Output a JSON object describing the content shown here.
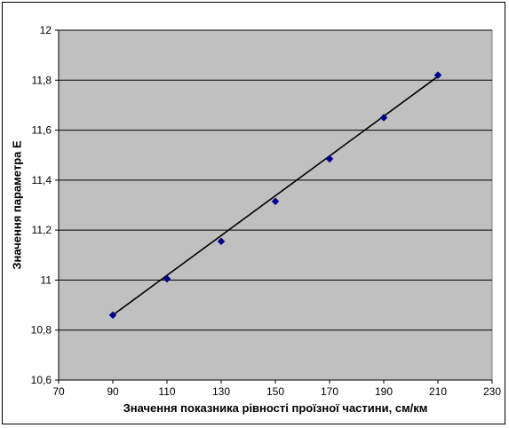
{
  "chart_data": {
    "type": "scatter",
    "title": "",
    "xlabel": "Значення показника рівності проїзної частини, см/км",
    "ylabel": "Значення параметра Е",
    "xlim": [
      70,
      230
    ],
    "ylim": [
      10.6,
      12
    ],
    "x_ticks": [
      "70",
      "90",
      "110",
      "130",
      "150",
      "170",
      "190",
      "210",
      "230"
    ],
    "y_ticks": [
      "10,6",
      "10,8",
      "11",
      "11,2",
      "11,4",
      "11,6",
      "11,8",
      "12"
    ],
    "grid": "horizontal",
    "legend": "none",
    "series": [
      {
        "x": [
          90,
          110,
          130,
          150,
          170,
          190,
          210
        ],
        "y": [
          10.86,
          11.005,
          11.155,
          11.315,
          11.485,
          11.65,
          11.82
        ],
        "marker": "diamond",
        "color": "#00008B"
      }
    ],
    "trendline": {
      "type": "linear",
      "x": [
        90,
        210
      ],
      "y": [
        10.86,
        11.815
      ],
      "color": "#000000"
    },
    "colors": {
      "plot_background": "#C0C0C0",
      "gridline": "#000000"
    }
  }
}
